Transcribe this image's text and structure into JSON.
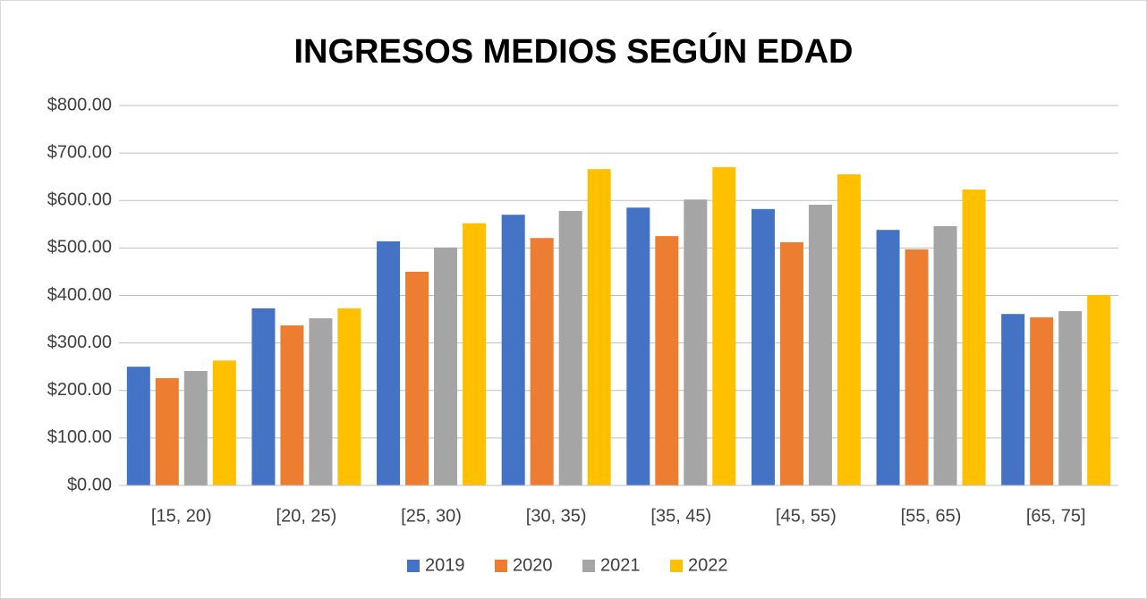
{
  "chart_data": {
    "type": "bar",
    "title": "INGRESOS MEDIOS SEGÚN EDAD",
    "categories": [
      "[15, 20)",
      "[20, 25)",
      "[25, 30)",
      "[30, 35)",
      "[35, 45)",
      "[45, 55)",
      "[55, 65)",
      "[65, 75]"
    ],
    "series": [
      {
        "name": "2019",
        "color": "#4472c4",
        "values": [
          250,
          373,
          514,
          570,
          585,
          582,
          538,
          361
        ]
      },
      {
        "name": "2020",
        "color": "#ed7d31",
        "values": [
          226,
          337,
          450,
          521,
          525,
          512,
          497,
          354
        ]
      },
      {
        "name": "2021",
        "color": "#a5a5a5",
        "values": [
          241,
          352,
          501,
          578,
          602,
          591,
          546,
          367
        ]
      },
      {
        "name": "2022",
        "color": "#ffc000",
        "values": [
          263,
          373,
          552,
          666,
          670,
          655,
          623,
          401
        ]
      }
    ],
    "ylim": [
      0,
      800
    ],
    "yticks": [
      {
        "value": 0,
        "label": "$0.00"
      },
      {
        "value": 100,
        "label": "$100.00"
      },
      {
        "value": 200,
        "label": "$200.00"
      },
      {
        "value": 300,
        "label": "$300.00"
      },
      {
        "value": 400,
        "label": "$400.00"
      },
      {
        "value": 500,
        "label": "$500.00"
      },
      {
        "value": 600,
        "label": "$600.00"
      },
      {
        "value": 700,
        "label": "$700.00"
      },
      {
        "value": 800,
        "label": "$800.00"
      }
    ],
    "grid": true,
    "legend": "bottom"
  }
}
